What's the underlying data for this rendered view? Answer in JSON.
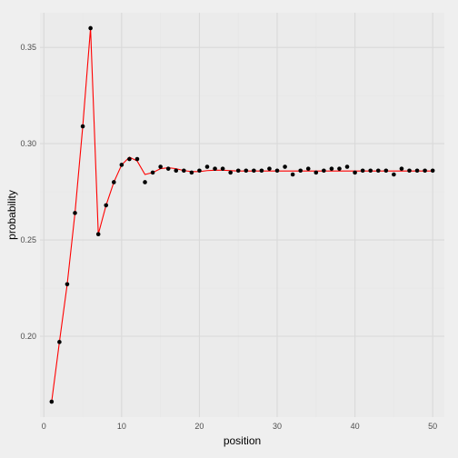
{
  "chart_data": {
    "type": "scatter",
    "title": "",
    "xlabel": "position",
    "ylabel": "probability",
    "xlim": [
      -0.5,
      51.5
    ],
    "ylim": [
      0.158,
      0.368
    ],
    "xticks": [
      0,
      10,
      20,
      30,
      40,
      50
    ],
    "xtick_labels": [
      "0",
      "10",
      "20",
      "30",
      "40",
      "50"
    ],
    "yticks": [
      0.2,
      0.25,
      0.3,
      0.35
    ],
    "ytick_labels": [
      "0.20",
      "0.25",
      "0.30",
      "0.35"
    ],
    "grid": true,
    "colors": {
      "background": "#efefef",
      "panel": "#ebebeb",
      "grid_major": "#d9d9d9",
      "grid_minor": "#e6e6e6",
      "points": "#000000",
      "line": "#ff0000"
    },
    "series": [
      {
        "kind": "points",
        "x": [
          1,
          2,
          3,
          4,
          5,
          6,
          7,
          8,
          9,
          10,
          11,
          12,
          13,
          14,
          15,
          16,
          17,
          18,
          19,
          20,
          21,
          22,
          23,
          24,
          25,
          26,
          27,
          28,
          29,
          30,
          31,
          32,
          33,
          34,
          35,
          36,
          37,
          38,
          39,
          40,
          41,
          42,
          43,
          44,
          45,
          46,
          47,
          48,
          49,
          50
        ],
        "y": [
          0.166,
          0.197,
          0.227,
          0.264,
          0.309,
          0.36,
          0.253,
          0.268,
          0.28,
          0.289,
          0.292,
          0.292,
          0.28,
          0.285,
          0.288,
          0.287,
          0.286,
          0.286,
          0.285,
          0.286,
          0.288,
          0.287,
          0.287,
          0.285,
          0.286,
          0.286,
          0.286,
          0.286,
          0.287,
          0.286,
          0.288,
          0.284,
          0.286,
          0.287,
          0.285,
          0.286,
          0.287,
          0.287,
          0.288,
          0.285,
          0.286,
          0.286,
          0.286,
          0.286,
          0.284,
          0.287,
          0.286,
          0.286,
          0.286,
          0.286
        ]
      },
      {
        "kind": "line",
        "x": [
          1,
          2,
          3,
          4,
          5,
          6,
          7,
          8,
          9,
          10,
          11,
          12,
          13,
          14,
          15,
          16,
          17,
          18,
          19,
          20,
          21,
          22,
          23,
          24,
          25,
          26,
          27,
          28,
          29,
          30,
          31,
          32,
          33,
          34,
          35,
          36,
          37,
          38,
          39,
          40,
          41,
          42,
          43,
          44,
          45,
          46,
          47,
          48,
          49,
          50
        ],
        "y": [
          0.166,
          0.197,
          0.227,
          0.264,
          0.309,
          0.36,
          0.253,
          0.268,
          0.28,
          0.289,
          0.293,
          0.291,
          0.284,
          0.285,
          0.287,
          0.2875,
          0.287,
          0.286,
          0.2855,
          0.2855,
          0.286,
          0.2862,
          0.2862,
          0.286,
          0.2858,
          0.2858,
          0.2858,
          0.2858,
          0.2858,
          0.2858,
          0.2858,
          0.2858,
          0.2858,
          0.2858,
          0.2858,
          0.2858,
          0.2858,
          0.2858,
          0.2858,
          0.2858,
          0.2858,
          0.2858,
          0.2858,
          0.2858,
          0.2858,
          0.2858,
          0.2858,
          0.2858,
          0.2858,
          0.2858
        ]
      }
    ]
  }
}
